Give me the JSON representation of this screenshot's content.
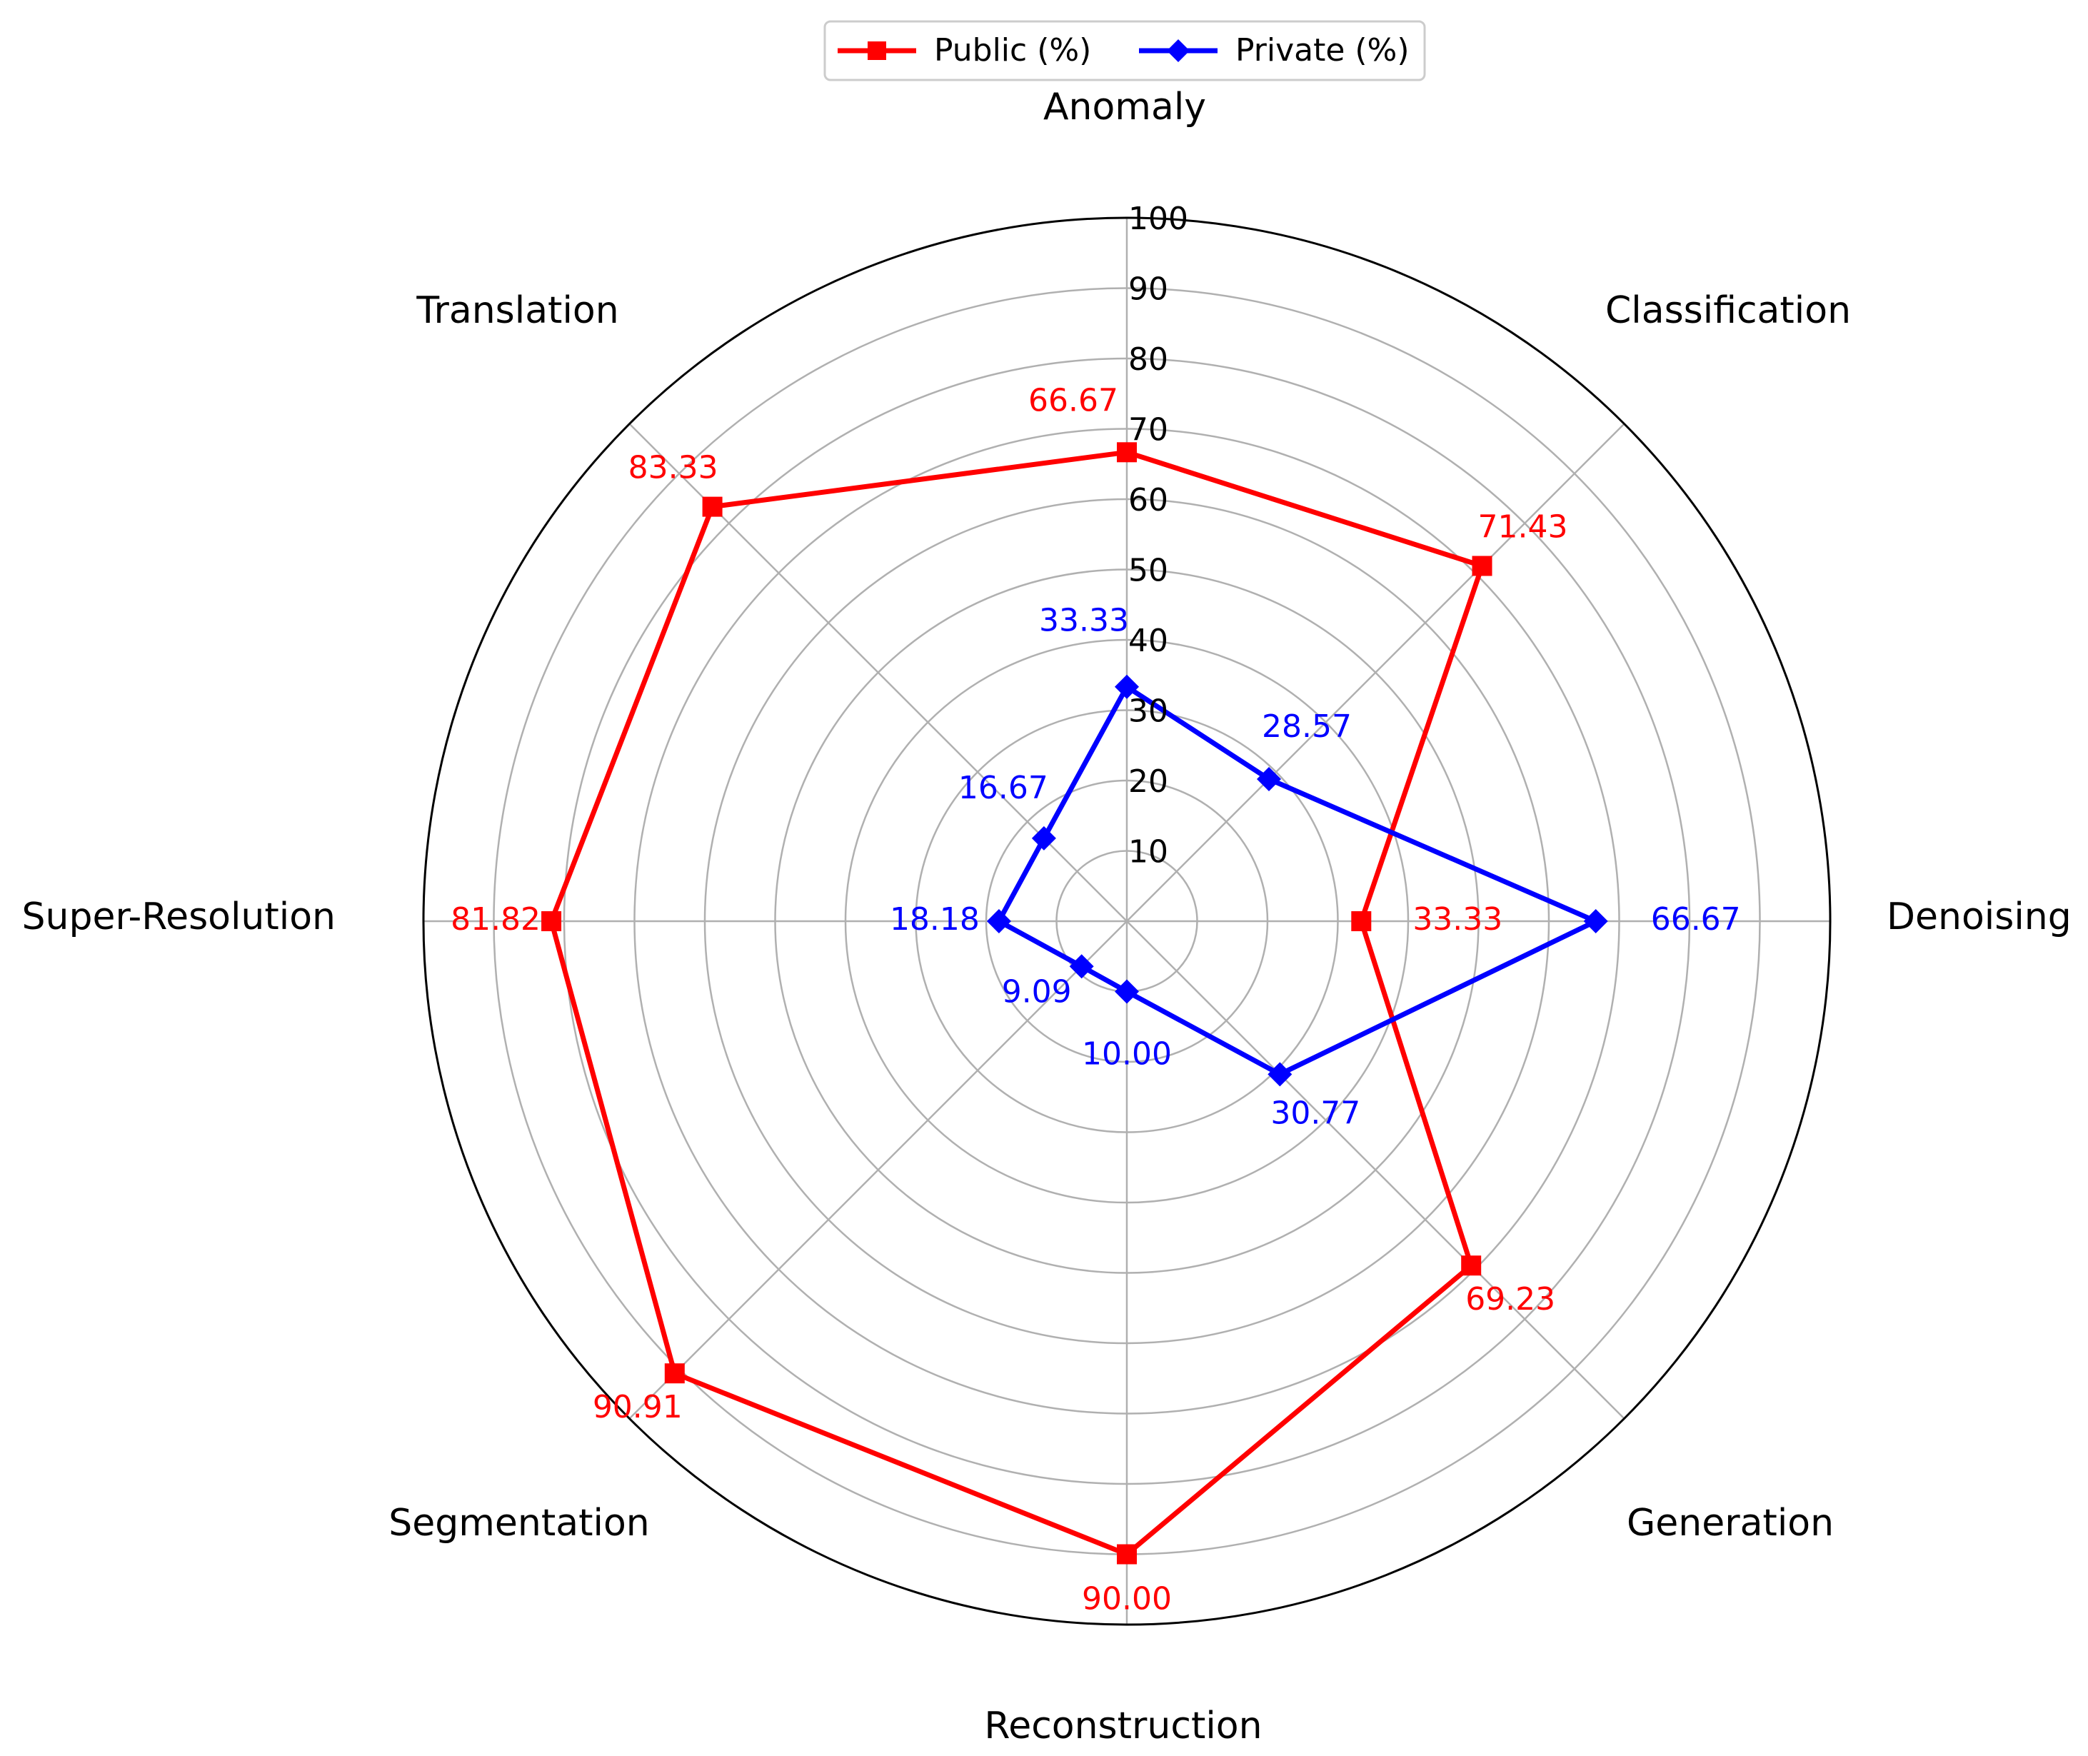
{
  "chart_data": {
    "type": "radar",
    "categories": [
      "Anomaly",
      "Classification",
      "Denoising",
      "Generation",
      "Reconstruction",
      "Segmentation",
      "Super-Resolution",
      "Translation"
    ],
    "series": [
      {
        "name": "Public (%)",
        "values": [
          66.67,
          71.43,
          33.33,
          69.23,
          90.0,
          90.91,
          81.82,
          83.33
        ],
        "labels": [
          "66.67",
          "71.43",
          "33.33",
          "69.23",
          "90.00",
          "90.91",
          "81.82",
          "83.33"
        ],
        "color": "#ff0000",
        "marker": "square"
      },
      {
        "name": "Private (%)",
        "values": [
          33.33,
          28.57,
          66.67,
          30.77,
          10.0,
          9.09,
          18.18,
          16.67
        ],
        "labels": [
          "33.33",
          "28.57",
          "66.67",
          "30.77",
          "10.00",
          "9.09",
          "18.18",
          "16.67"
        ],
        "color": "#0000ff",
        "marker": "diamond"
      }
    ],
    "r_ticks": [
      "10",
      "20",
      "30",
      "40",
      "50",
      "60",
      "70",
      "80",
      "90",
      "100"
    ],
    "rlim": [
      0,
      100
    ],
    "grid": true,
    "legend": "top-center"
  }
}
